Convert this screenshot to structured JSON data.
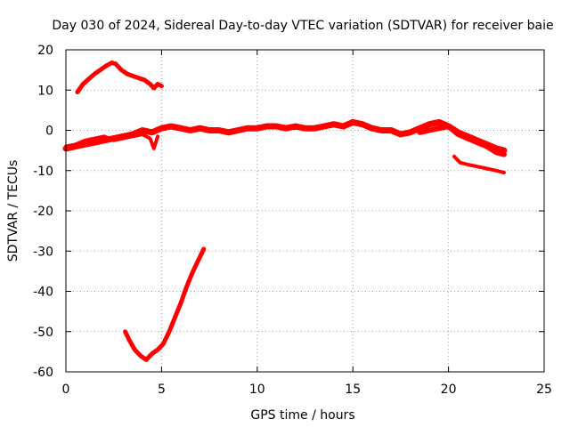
{
  "chart_data": {
    "type": "line",
    "title": "Day 030 of 2024, Sidereal Day-to-day VTEC variation (SDTVAR) for receiver baie",
    "xlabel": "GPS time / hours",
    "ylabel": "SDTVAR / TECUs",
    "xlim": [
      0,
      25
    ],
    "ylim": [
      -60,
      20
    ],
    "xticks": [
      0,
      5,
      10,
      15,
      20,
      25
    ],
    "yticks": [
      -60,
      -50,
      -40,
      -30,
      -20,
      -10,
      0,
      10,
      20
    ],
    "grid": true,
    "legend": "none",
    "color": "#ff0000",
    "series": [
      {
        "name": "upper-arc",
        "x": [
          0.6,
          0.9,
          1.2,
          1.5,
          1.8,
          2.1,
          2.4,
          2.6,
          2.9,
          3.2,
          3.5,
          3.8,
          4.1,
          4.4,
          4.6,
          4.8,
          5.0
        ],
        "y": [
          9.5,
          11.5,
          12.8,
          14.0,
          15.0,
          16.0,
          16.8,
          16.5,
          15.0,
          14.0,
          13.5,
          13.0,
          12.5,
          11.5,
          10.5,
          11.5,
          11.0
        ]
      },
      {
        "name": "main-band",
        "x": [
          0,
          0.5,
          1,
          1.5,
          2,
          2.5,
          3,
          3.5,
          4,
          4.5,
          5,
          5.5,
          6,
          6.5,
          7,
          7.5,
          8,
          8.5,
          9,
          9.5,
          10,
          10.5,
          11,
          11.5,
          12,
          12.5,
          13,
          13.5,
          14,
          14.5,
          15,
          15.5,
          16,
          16.5,
          17,
          17.5,
          18,
          18.5,
          19,
          19.5,
          20,
          20.5,
          21,
          21.5,
          22,
          22.5,
          22.9
        ],
        "y": [
          -4.5,
          -4.0,
          -3.5,
          -3.0,
          -2.5,
          -2.0,
          -1.5,
          -1.0,
          0.0,
          -0.5,
          0.5,
          1.0,
          0.5,
          0.0,
          0.5,
          0.0,
          0.0,
          -0.5,
          0.0,
          0.5,
          0.5,
          1.0,
          1.0,
          0.5,
          1.0,
          0.5,
          0.5,
          1.0,
          1.5,
          1.0,
          2.0,
          1.5,
          0.5,
          0.0,
          0.0,
          -1.0,
          -0.5,
          0.5,
          1.5,
          2.0,
          1.0,
          -0.5,
          -1.5,
          -2.5,
          -3.5,
          -4.5,
          -5.0
        ]
      },
      {
        "name": "lower-right-arc",
        "x": [
          20.3,
          20.6,
          21.0,
          21.5,
          22.0,
          22.5,
          22.9
        ],
        "y": [
          -6.5,
          -8.0,
          -8.5,
          -9.0,
          -9.5,
          -10.0,
          -10.5
        ]
      },
      {
        "name": "deep-arc",
        "x": [
          3.1,
          3.3,
          3.6,
          3.9,
          4.2,
          4.5,
          4.8,
          5.1,
          5.4,
          5.7,
          6.0,
          6.3,
          6.6,
          6.9,
          7.2
        ],
        "y": [
          -50.0,
          -52.0,
          -54.5,
          -56.0,
          -57.0,
          -55.5,
          -54.5,
          -53.0,
          -50.0,
          -46.5,
          -43.0,
          -39.0,
          -35.5,
          -32.5,
          -29.5
        ]
      },
      {
        "name": "secondary-left",
        "x": [
          0.0,
          0.5,
          1.0,
          1.5,
          2.0,
          2.5,
          3.0,
          3.5,
          4.0,
          4.4,
          4.6,
          4.8
        ],
        "y": [
          -4.0,
          -3.5,
          -2.5,
          -2.0,
          -1.5,
          -2.5,
          -2.0,
          -1.5,
          -1.0,
          -2.0,
          -4.5,
          -1.5
        ]
      },
      {
        "name": "secondary-right",
        "x": [
          18.5,
          19.0,
          19.5,
          20.0,
          20.5,
          21.0,
          21.5,
          22.0,
          22.5,
          22.9
        ],
        "y": [
          -0.5,
          0.0,
          0.5,
          1.0,
          -1.0,
          -2.0,
          -3.0,
          -4.0,
          -5.5,
          -6.0
        ]
      }
    ]
  }
}
